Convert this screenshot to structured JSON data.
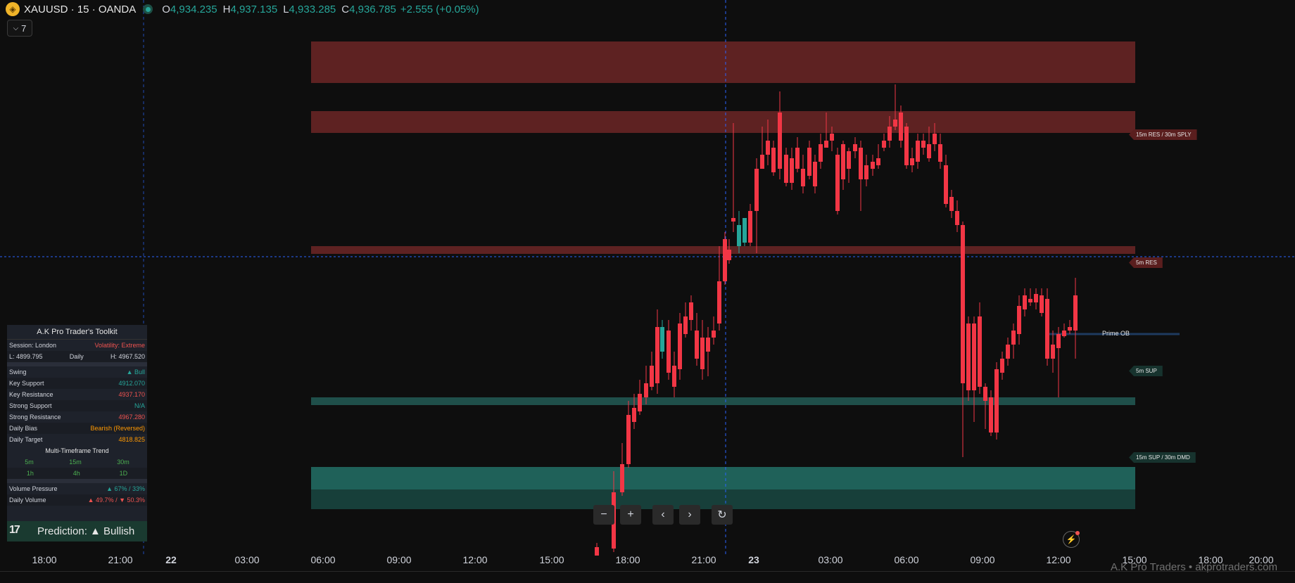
{
  "header": {
    "symbol": "XAUUSD · 15 · OANDA",
    "logo_icon": "gold-coin-icon",
    "ohlc": [
      {
        "label": "O",
        "value": "4,934.235"
      },
      {
        "label": "H",
        "value": "4,937.135"
      },
      {
        "label": "L",
        "value": "4,933.285"
      },
      {
        "label": "C",
        "value": "4,936.785"
      }
    ],
    "change": "+2.555 (+0.05%)",
    "up_color": "#26a69a",
    "down_color": "#f23645"
  },
  "indicators_button": {
    "icon": "chevron-down-icon",
    "count": "7"
  },
  "zones": {
    "resistance_color": "#5e2222",
    "support_color": "#1f6159",
    "support_dark_color": "#173f3a",
    "crosshair_color": "#2962ff"
  },
  "zone_labels": {
    "res_15m": "15m RES / 30m SPLY",
    "res_5m": "5m RES",
    "prime_ob": "Prime OB",
    "sup_5m": "5m SUP",
    "sup_15m": "15m SUP / 30m DMD"
  },
  "toolkit": {
    "title": "A.K Pro Trader's Toolkit",
    "session": "Session: London",
    "volatility": "Volatility: Extreme",
    "low": "L: 4899.795",
    "period": "Daily",
    "high": "H: 4967.520",
    "rows": [
      {
        "label": "Swing",
        "value": "▲ Bull",
        "tone": "green"
      },
      {
        "label": "Key Support",
        "value": "4912.070",
        "tone": "green"
      },
      {
        "label": "Key Resistance",
        "value": "4937.170",
        "tone": "red"
      },
      {
        "label": "Strong Support",
        "value": "N/A",
        "tone": "green"
      },
      {
        "label": "Strong Resistance",
        "value": "4967.280",
        "tone": "red"
      },
      {
        "label": "Daily Bias",
        "value": "Bearish (Reversed)",
        "tone": "orange"
      },
      {
        "label": "Daily Target",
        "value": "4818.825",
        "tone": "orange"
      }
    ],
    "mtf_title": "Multi-Timeframe Trend",
    "mtf_row1": [
      "5m",
      "15m",
      "30m"
    ],
    "mtf_row2": [
      "1h",
      "4h",
      "1D"
    ],
    "volume_pressure_label": "Volume Pressure",
    "volume_pressure_value": "▲ 67% / 33%",
    "daily_volume_label": "Daily Volume",
    "daily_volume_value": "▲ 49.7% / ▼ 50.3%",
    "prediction": "Prediction: ▲ Bullish"
  },
  "nav_buttons": [
    {
      "name": "zoom-out-button",
      "icon": "minus-icon",
      "glyph": "−"
    },
    {
      "name": "zoom-in-button",
      "icon": "plus-icon",
      "glyph": "+"
    },
    {
      "name": "scroll-left-button",
      "icon": "chevron-left-icon",
      "glyph": "‹"
    },
    {
      "name": "scroll-right-button",
      "icon": "chevron-right-icon",
      "glyph": "›"
    },
    {
      "name": "reset-chart-button",
      "icon": "reset-icon",
      "glyph": "↻"
    }
  ],
  "x_axis": [
    {
      "label": "18:00",
      "bold": false
    },
    {
      "label": "21:00",
      "bold": false
    },
    {
      "label": "22",
      "bold": true
    },
    {
      "label": "03:00",
      "bold": false
    },
    {
      "label": "06:00",
      "bold": false
    },
    {
      "label": "09:00",
      "bold": false
    },
    {
      "label": "12:00",
      "bold": false
    },
    {
      "label": "15:00",
      "bold": false
    },
    {
      "label": "18:00",
      "bold": false
    },
    {
      "label": "21:00",
      "bold": false
    },
    {
      "label": "23",
      "bold": true
    },
    {
      "label": "03:00",
      "bold": false
    },
    {
      "label": "06:00",
      "bold": false
    },
    {
      "label": "09:00",
      "bold": false
    },
    {
      "label": "12:00",
      "bold": false
    },
    {
      "label": "15:00",
      "bold": false
    },
    {
      "label": "18:00",
      "bold": false
    },
    {
      "label": "20:00",
      "bold": false
    }
  ],
  "watermark": "A.K Pro Traders • akprotraders.com",
  "alert_icon": "lightning-alert-icon"
}
